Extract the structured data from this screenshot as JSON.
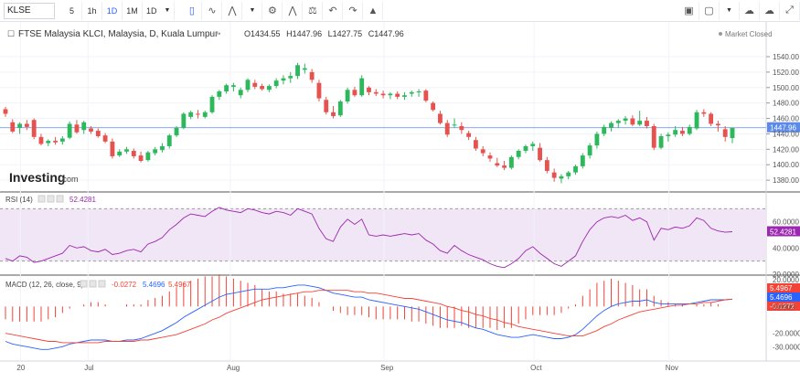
{
  "toolbar": {
    "symbol": "KLSE",
    "intervals": [
      "5",
      "1h",
      "1D",
      "1M",
      "1D"
    ],
    "active_interval": "1D"
  },
  "legend": {
    "title": "FTSE Malaysia KLCI, Malaysia, D, Kuala Lumpur",
    "open_label": "O",
    "open": "1434.55",
    "high_label": "H",
    "high": "1447.96",
    "low_label": "L",
    "low": "1427.75",
    "close_label": "C",
    "close": "1447.96",
    "market_status": "Market Closed"
  },
  "logo": {
    "brand": "Investing",
    "suffix": ".com"
  },
  "colors": {
    "up": "#26a69a",
    "down": "#ef5350",
    "up_fill": "#2db85c",
    "down_fill": "#e6534f",
    "rsi_line": "#9c27b0",
    "rsi_band": "#f1e6f5",
    "macd_line": "#2962ff",
    "signal_line": "#f44336",
    "hist": "#f44336",
    "price_line": "#5b8ae8"
  },
  "chart_data": [
    {
      "type": "candlestick",
      "title": "FTSE Malaysia KLCI, Malaysia, D, Kuala Lumpur",
      "ylim": [
        1360,
        1540
      ],
      "y_ticks": [
        "1540.00",
        "1520.00",
        "1500.00",
        "1480.00",
        "1460.00",
        "1440.00",
        "1420.00",
        "1400.00",
        "1380.00"
      ],
      "x_ticks": [
        "20",
        "Jul",
        "Aug",
        "Sep",
        "Oct",
        "Nov"
      ],
      "last_price": "1447.96",
      "candles": [
        [
          1472,
          1475,
          1462,
          1466
        ],
        [
          1455,
          1459,
          1441,
          1443
        ],
        [
          1448,
          1455,
          1440,
          1453
        ],
        [
          1453,
          1458,
          1445,
          1449
        ],
        [
          1458,
          1460,
          1433,
          1436
        ],
        [
          1436,
          1440,
          1425,
          1427
        ],
        [
          1428,
          1433,
          1424,
          1431
        ],
        [
          1431,
          1436,
          1426,
          1429
        ],
        [
          1430,
          1437,
          1426,
          1434
        ],
        [
          1435,
          1456,
          1433,
          1453
        ],
        [
          1452,
          1458,
          1440,
          1442
        ],
        [
          1445,
          1457,
          1440,
          1455
        ],
        [
          1447,
          1450,
          1440,
          1443
        ],
        [
          1444,
          1447,
          1435,
          1437
        ],
        [
          1438,
          1441,
          1428,
          1430
        ],
        [
          1430,
          1434,
          1408,
          1411
        ],
        [
          1412,
          1420,
          1410,
          1417
        ],
        [
          1417,
          1423,
          1414,
          1420
        ],
        [
          1418,
          1421,
          1408,
          1411
        ],
        [
          1412,
          1417,
          1403,
          1405
        ],
        [
          1406,
          1418,
          1404,
          1416
        ],
        [
          1415,
          1423,
          1412,
          1420
        ],
        [
          1419,
          1428,
          1416,
          1424
        ],
        [
          1424,
          1440,
          1421,
          1438
        ],
        [
          1438,
          1450,
          1436,
          1448
        ],
        [
          1448,
          1468,
          1446,
          1466
        ],
        [
          1462,
          1470,
          1459,
          1468
        ],
        [
          1466,
          1471,
          1460,
          1465
        ],
        [
          1462,
          1470,
          1460,
          1468
        ],
        [
          1468,
          1490,
          1466,
          1488
        ],
        [
          1488,
          1497,
          1484,
          1495
        ],
        [
          1495,
          1505,
          1492,
          1503
        ],
        [
          1501,
          1506,
          1495,
          1503
        ],
        [
          1490,
          1500,
          1486,
          1497
        ],
        [
          1497,
          1512,
          1494,
          1510
        ],
        [
          1506,
          1510,
          1498,
          1501
        ],
        [
          1502,
          1505,
          1496,
          1498
        ],
        [
          1497,
          1504,
          1494,
          1502
        ],
        [
          1502,
          1512,
          1499,
          1509
        ],
        [
          1509,
          1516,
          1504,
          1512
        ],
        [
          1512,
          1520,
          1506,
          1515
        ],
        [
          1515,
          1532,
          1511,
          1529
        ],
        [
          1523,
          1531,
          1518,
          1525
        ],
        [
          1520,
          1524,
          1506,
          1510
        ],
        [
          1506,
          1510,
          1482,
          1486
        ],
        [
          1484,
          1488,
          1465,
          1468
        ],
        [
          1468,
          1476,
          1460,
          1463
        ],
        [
          1464,
          1484,
          1462,
          1482
        ],
        [
          1482,
          1500,
          1479,
          1497
        ],
        [
          1497,
          1501,
          1488,
          1490
        ],
        [
          1490,
          1516,
          1488,
          1512
        ],
        [
          1500,
          1502,
          1490,
          1494
        ],
        [
          1494,
          1498,
          1489,
          1492
        ],
        [
          1492,
          1496,
          1486,
          1490
        ],
        [
          1490,
          1494,
          1485,
          1492
        ],
        [
          1492,
          1495,
          1485,
          1488
        ],
        [
          1488,
          1494,
          1484,
          1490
        ],
        [
          1492,
          1496,
          1488,
          1494
        ],
        [
          1494,
          1498,
          1488,
          1495
        ],
        [
          1496,
          1498,
          1481,
          1483
        ],
        [
          1480,
          1482,
          1469,
          1471
        ],
        [
          1466,
          1470,
          1452,
          1454
        ],
        [
          1454,
          1458,
          1436,
          1439
        ],
        [
          1452,
          1460,
          1448,
          1452
        ],
        [
          1450,
          1455,
          1440,
          1445
        ],
        [
          1441,
          1444,
          1432,
          1436
        ],
        [
          1432,
          1436,
          1418,
          1421
        ],
        [
          1420,
          1424,
          1411,
          1415
        ],
        [
          1412,
          1416,
          1404,
          1408
        ],
        [
          1402,
          1409,
          1397,
          1399
        ],
        [
          1399,
          1405,
          1393,
          1396
        ],
        [
          1396,
          1412,
          1394,
          1410
        ],
        [
          1410,
          1420,
          1407,
          1418
        ],
        [
          1418,
          1426,
          1415,
          1424
        ],
        [
          1424,
          1430,
          1418,
          1427
        ],
        [
          1422,
          1428,
          1404,
          1406
        ],
        [
          1406,
          1410,
          1389,
          1392
        ],
        [
          1390,
          1395,
          1378,
          1383
        ],
        [
          1382,
          1388,
          1376,
          1385
        ],
        [
          1385,
          1392,
          1381,
          1390
        ],
        [
          1390,
          1400,
          1387,
          1398
        ],
        [
          1398,
          1415,
          1395,
          1412
        ],
        [
          1412,
          1428,
          1408,
          1425
        ],
        [
          1425,
          1443,
          1421,
          1440
        ],
        [
          1440,
          1452,
          1437,
          1449
        ],
        [
          1448,
          1456,
          1443,
          1454
        ],
        [
          1454,
          1459,
          1448,
          1457
        ],
        [
          1457,
          1463,
          1452,
          1460
        ],
        [
          1460,
          1464,
          1450,
          1452
        ],
        [
          1452,
          1470,
          1450,
          1457
        ],
        [
          1457,
          1462,
          1447,
          1450
        ],
        [
          1450,
          1453,
          1419,
          1422
        ],
        [
          1422,
          1440,
          1420,
          1437
        ],
        [
          1437,
          1442,
          1430,
          1439
        ],
        [
          1439,
          1450,
          1436,
          1445
        ],
        [
          1444,
          1449,
          1437,
          1440
        ],
        [
          1440,
          1452,
          1438,
          1449
        ],
        [
          1447,
          1471,
          1445,
          1468
        ],
        [
          1468,
          1472,
          1462,
          1466
        ],
        [
          1466,
          1468,
          1450,
          1453
        ],
        [
          1453,
          1457,
          1443,
          1451
        ],
        [
          1446,
          1450,
          1430,
          1436
        ],
        [
          1434.55,
          1447.96,
          1427.75,
          1447.96
        ]
      ]
    },
    {
      "type": "line",
      "title": "RSI (14)",
      "current_value": "52.4281",
      "ylim": [
        20,
        80
      ],
      "y_ticks": [
        "60.0000",
        "40.0000",
        "20.0000"
      ],
      "bands": [
        70,
        30
      ],
      "series": [
        {
          "name": "RSI (14)",
          "values": [
            32,
            30,
            34,
            33,
            29,
            30,
            32,
            34,
            36,
            42,
            40,
            41,
            38,
            37,
            39,
            35,
            36,
            38,
            39,
            37,
            43,
            45,
            48,
            54,
            58,
            63,
            66,
            65,
            64,
            68,
            71,
            69,
            68,
            67,
            70,
            69,
            67,
            66,
            68,
            67,
            65,
            70,
            68,
            66,
            55,
            47,
            45,
            56,
            62,
            58,
            62,
            50,
            49,
            50,
            49,
            50,
            51,
            50,
            51,
            46,
            43,
            38,
            36,
            42,
            38,
            35,
            33,
            31,
            28,
            26,
            25,
            28,
            32,
            38,
            41,
            36,
            32,
            28,
            26,
            30,
            34,
            45,
            54,
            60,
            63,
            64,
            63,
            65,
            61,
            63,
            60,
            46,
            55,
            54,
            56,
            55,
            57,
            63,
            61,
            55,
            53,
            52,
            52.43
          ]
        }
      ]
    },
    {
      "type": "line",
      "title": "MACD (12, 26, close, 9)",
      "values_shown": [
        "-0.0272",
        "5.4696",
        "5.4967"
      ],
      "ylim": [
        -40,
        20
      ],
      "y_ticks": [
        "20.0000",
        "0.0000",
        "-20.0000",
        "-30.0000"
      ],
      "series": [
        {
          "name": "MACD",
          "values": [
            -26,
            -28,
            -29,
            -30,
            -31,
            -32,
            -32,
            -31,
            -30,
            -28,
            -27,
            -26,
            -25,
            -25,
            -25,
            -26,
            -26,
            -25,
            -25,
            -24,
            -22,
            -20,
            -18,
            -15,
            -12,
            -8,
            -5,
            -2,
            1,
            4,
            7,
            9,
            10,
            11,
            12,
            13,
            13,
            13,
            14,
            14,
            15,
            16,
            16,
            15,
            14,
            12,
            10,
            9,
            8,
            7,
            7,
            5,
            4,
            3,
            2,
            1,
            0,
            -1,
            -2,
            -4,
            -6,
            -8,
            -10,
            -11,
            -12,
            -14,
            -16,
            -17,
            -19,
            -21,
            -22,
            -23,
            -23,
            -22,
            -21,
            -22,
            -23,
            -24,
            -24,
            -23,
            -21,
            -17,
            -12,
            -7,
            -3,
            0,
            2,
            3,
            4,
            4,
            5,
            3,
            2,
            2,
            2,
            2,
            2,
            3,
            4,
            5,
            5,
            5,
            5.47
          ]
        },
        {
          "name": "Signal",
          "values": [
            -20,
            -21,
            -22,
            -23,
            -24,
            -25,
            -26,
            -26,
            -27,
            -27,
            -27,
            -27,
            -27,
            -27,
            -26,
            -26,
            -26,
            -26,
            -26,
            -25,
            -25,
            -24,
            -23,
            -22,
            -21,
            -19,
            -17,
            -15,
            -13,
            -10,
            -8,
            -5,
            -3,
            -1,
            1,
            3,
            5,
            6,
            7,
            8,
            9,
            10,
            11,
            11,
            12,
            12,
            12,
            12,
            12,
            11,
            11,
            10,
            10,
            9,
            8,
            7,
            6,
            6,
            5,
            4,
            3,
            2,
            0,
            -1,
            -3,
            -4,
            -6,
            -7,
            -9,
            -10,
            -12,
            -13,
            -15,
            -16,
            -17,
            -18,
            -19,
            -20,
            -21,
            -22,
            -22,
            -22,
            -20,
            -18,
            -15,
            -13,
            -10,
            -8,
            -6,
            -4,
            -3,
            -2,
            -1,
            0,
            1,
            1,
            2,
            2,
            3,
            3,
            4,
            5,
            5.5
          ]
        }
      ]
    }
  ]
}
